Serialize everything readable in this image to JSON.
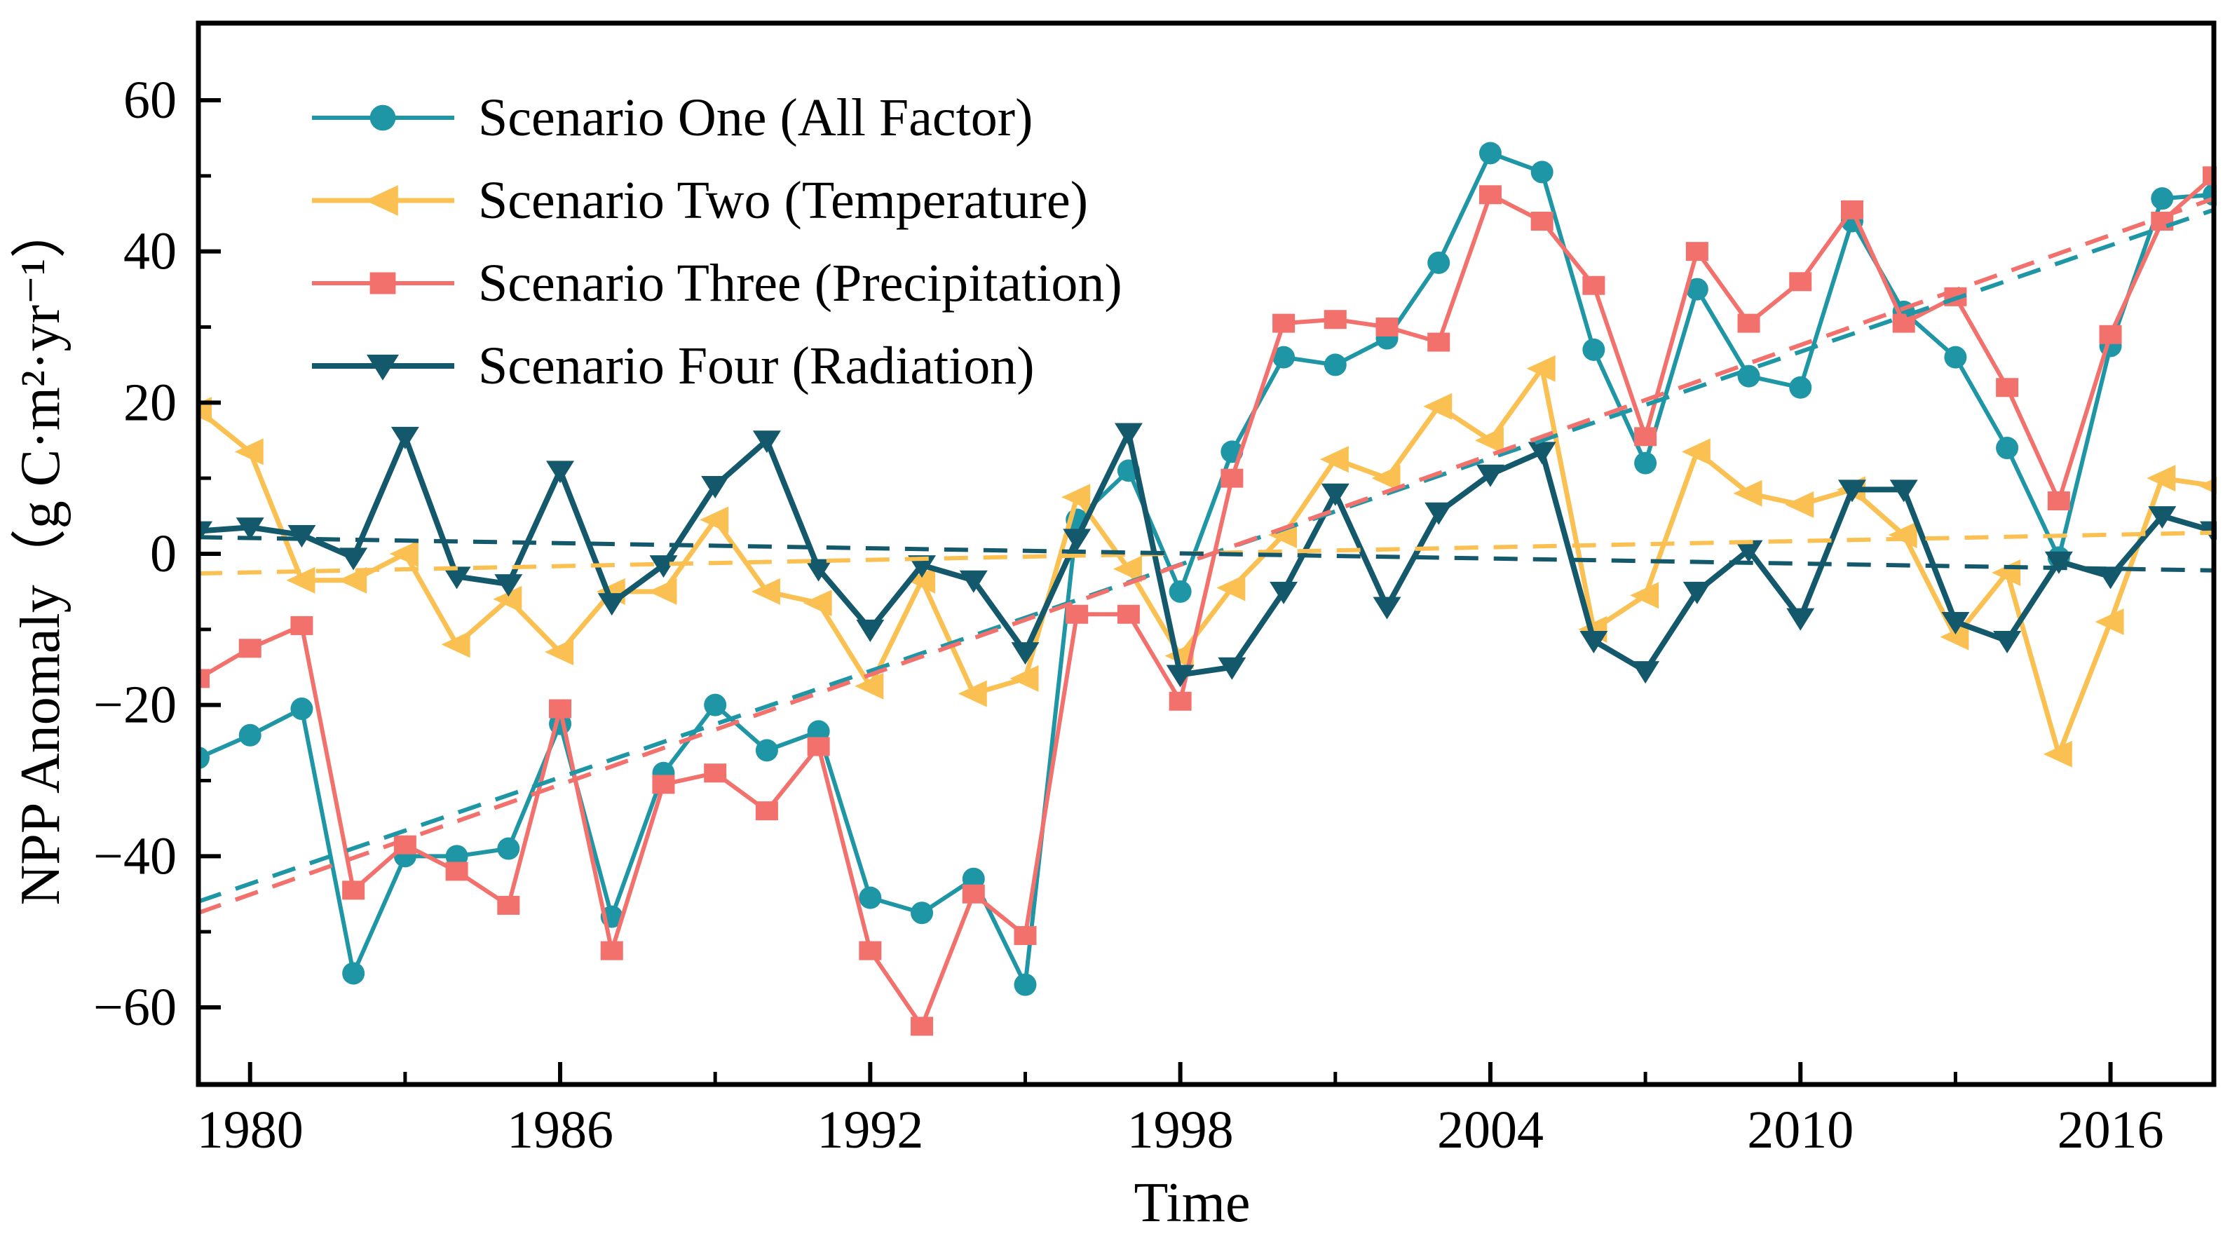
{
  "chart_data": {
    "type": "line",
    "title": "",
    "xlabel": "Time",
    "ylabel": "NPP Anomaly（g C·m²·yr⁻¹）",
    "xlim": [
      1979,
      2018
    ],
    "ylim": [
      -70.2,
      70.2
    ],
    "grid": false,
    "legend_position": "top-left-inside",
    "x_ticks_major": [
      1980,
      1986,
      1992,
      1998,
      2004,
      2010,
      2016
    ],
    "x_ticks_minor": [
      1983,
      1989,
      1995,
      2001,
      2007,
      2013
    ],
    "y_ticks_major": [
      -60,
      -40,
      -20,
      0,
      20,
      40,
      60
    ],
    "y_ticks_minor": [
      -50,
      -30,
      -10,
      10,
      30,
      50
    ],
    "axis_color": "#000000",
    "x": [
      1979,
      1980,
      1981,
      1982,
      1983,
      1984,
      1985,
      1986,
      1987,
      1988,
      1989,
      1990,
      1991,
      1992,
      1993,
      1994,
      1995,
      1996,
      1997,
      1998,
      1999,
      2000,
      2001,
      2002,
      2003,
      2004,
      2005,
      2006,
      2007,
      2008,
      2009,
      2010,
      2011,
      2012,
      2013,
      2014,
      2015,
      2016,
      2017,
      2018
    ],
    "series": [
      {
        "name": "Scenario One (All Factor)",
        "color": "#1e96a5",
        "marker": "circle",
        "line_width": 6,
        "values": [
          -27,
          -24,
          -20.5,
          -55.5,
          -40,
          -40,
          -39,
          -22.5,
          -48,
          -29,
          -20,
          -26,
          -23.5,
          -45.5,
          -47.5,
          -43,
          -57,
          4.5,
          11,
          -5,
          13.5,
          26,
          25,
          28.5,
          38.5,
          53,
          50.5,
          27,
          12,
          35,
          23.5,
          22,
          44,
          32,
          26,
          14,
          -0.5,
          27.5,
          47,
          47.5
        ],
        "trend": {
          "start": -46,
          "end": 45.5
        }
      },
      {
        "name": "Scenario Two (Temperature)",
        "color": "#fac051",
        "marker": "triangle-left",
        "line_width": 7,
        "values": [
          19,
          13.5,
          -3.5,
          -3.5,
          0,
          -12,
          -6,
          -13,
          -5,
          -5,
          4.5,
          -5,
          -6.5,
          -17.5,
          -3.5,
          -18.5,
          -16.5,
          7.5,
          -2,
          -13.5,
          -4.5,
          2.5,
          12.5,
          10,
          19.5,
          15,
          24.5,
          -10,
          -5.5,
          13.5,
          8,
          6.5,
          8.5,
          2.5,
          -11,
          -2.5,
          -26.5,
          -9,
          10,
          9
        ],
        "trend": {
          "start": -2.6,
          "end": 2.8
        }
      },
      {
        "name": "Scenario Three (Precipitation)",
        "color": "#f2716c",
        "marker": "square",
        "line_width": 6,
        "values": [
          -16.5,
          -12.5,
          -9.5,
          -44.5,
          -38.5,
          -42,
          -46.5,
          -20.5,
          -52.5,
          -30.5,
          -29,
          -34,
          -25.5,
          -52.5,
          -62.5,
          -45,
          -50.5,
          -8,
          -8,
          -19.5,
          10,
          30.5,
          31,
          30,
          28,
          47.5,
          44,
          35.5,
          15.5,
          40,
          30.5,
          36,
          45.5,
          30.5,
          34,
          22,
          7,
          29,
          44,
          50
        ],
        "trend": {
          "start": -47.5,
          "end": 47
        }
      },
      {
        "name": "Scenario Four (Radiation)",
        "color": "#14596b",
        "marker": "triangle-down",
        "line_width": 8,
        "values": [
          3,
          3.5,
          2.5,
          -0.5,
          15.5,
          -3,
          -4,
          11,
          -6.5,
          -1.5,
          9,
          15,
          -2,
          -10,
          -1.5,
          -3.5,
          -13,
          2,
          16,
          -16,
          -15,
          -5,
          8,
          -7,
          5.5,
          10.5,
          13.5,
          -11.5,
          -15.5,
          -5,
          0.5,
          -8.5,
          8.5,
          8.5,
          -9,
          -11.5,
          -1,
          -3,
          5,
          3
        ],
        "trend": {
          "start": 2.2,
          "end": -2.2
        }
      }
    ]
  }
}
